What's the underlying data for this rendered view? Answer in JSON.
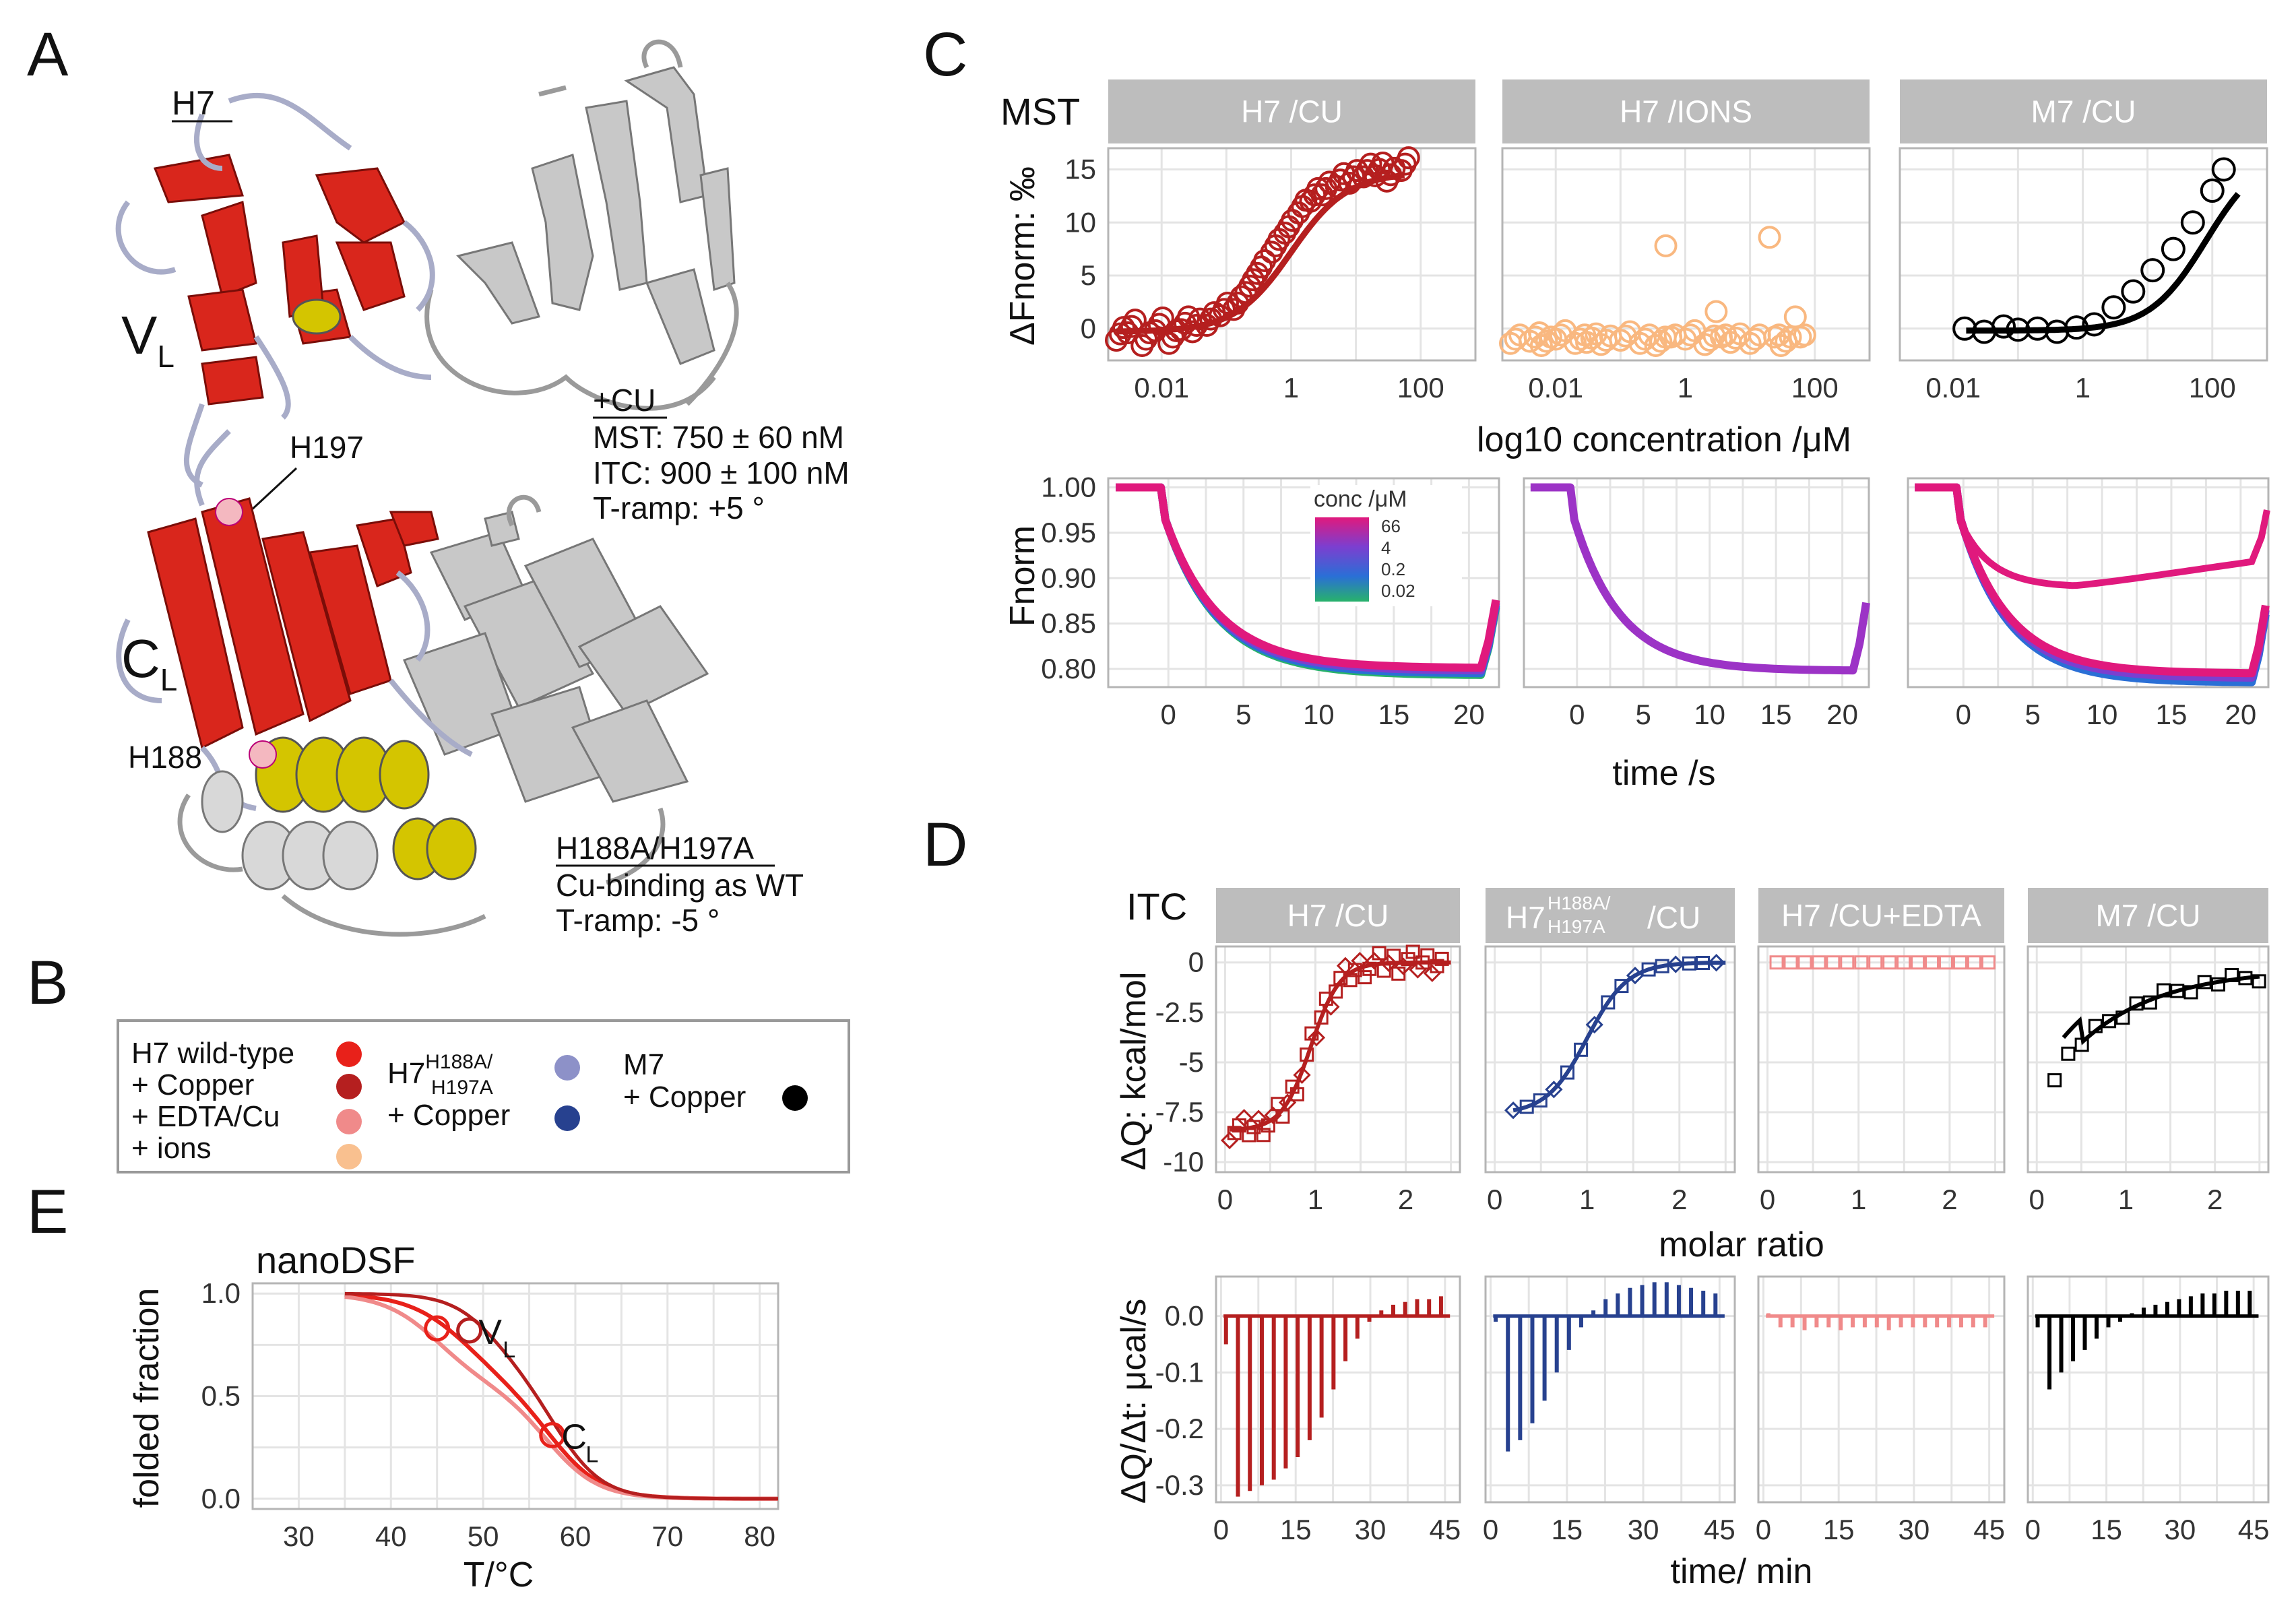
{
  "panel_labels": {
    "a": "A",
    "b": "B",
    "c": "C",
    "d": "D",
    "e": "E"
  },
  "panel_a": {
    "h7": "H7",
    "vl_main": "V",
    "vl_sub": "L",
    "cl_main": "C",
    "cl_sub": "L",
    "h197": "H197",
    "h188": "H188",
    "cu_head": "+CU",
    "cu_mst": "MST: 750 ±   60 nM",
    "cu_itc": "ITC:   900 ± 100  nM",
    "cu_tramp": "T-ramp: +5 °",
    "mut_head": "H188A/H197A",
    "mut_line1": "Cu-binding as WT",
    "mut_line2": "T-ramp: -5 °",
    "colors": {
      "domain": "#d9261c",
      "dark": "#a31510",
      "helix": "#f0e000",
      "loop": "#a8acc8",
      "grey": "#c8c8c8",
      "his": "#f4b8c0"
    }
  },
  "panel_b": {
    "wt_line1": "H7 wild-type",
    "wt_line2": "+ Copper",
    "wt_line3": "+ EDTA/Cu",
    "wt_line4": "+ ions",
    "mut_name": "H7",
    "mut_sup1": "H188A/",
    "mut_sub": "H197A",
    "mut_line2": "+ Copper",
    "m7_line1": "M7",
    "m7_line2": "+ Copper",
    "colors": {
      "wt": "#e8211a",
      "copper": "#b51f1f",
      "edta": "#f08a8a",
      "ions": "#f9c08f",
      "mut": "#8d91c8",
      "mut_cu": "#27418f",
      "m7": "#000000"
    }
  },
  "chart_data": [
    {
      "type": "scatter",
      "id": "mst_dose",
      "row_label": "MST",
      "ylabel": "ΔFnorm: ‰",
      "xlabel": "log10 concentration /μM",
      "xscale": "log",
      "facets": [
        "H7 /CU",
        "H7 /IONS",
        "M7 /CU"
      ],
      "yticks": [
        "0",
        "5",
        "10",
        "15"
      ],
      "xtick_labels": [
        "0.01",
        "1",
        "100"
      ],
      "ylim": [
        -3,
        17
      ],
      "series": [
        {
          "facet": 0,
          "color": "#b51f1f",
          "x": [
            0.002,
            0.003,
            0.005,
            0.008,
            0.013,
            0.02,
            0.03,
            0.05,
            0.08,
            0.13,
            0.2,
            0.3,
            0.5,
            0.8,
            1.3,
            2,
            3,
            5,
            8,
            13,
            20,
            30,
            50
          ],
          "y": [
            -0.5,
            0.2,
            -1,
            0.4,
            -0.8,
            0.5,
            0.3,
            0.9,
            1.8,
            2.4,
            4,
            5.8,
            7.8,
            9.6,
            11.5,
            12.6,
            13.2,
            14,
            14.3,
            14.9,
            15,
            14.5,
            15.5
          ],
          "fit_kd": 1,
          "fit_top": 15
        }
      ],
      "ions_x": [
        0.002,
        0.004,
        0.006,
        0.01,
        0.02,
        0.03,
        0.05,
        0.1,
        0.2,
        0.35,
        0.5,
        1,
        2,
        3,
        5,
        10,
        20,
        30,
        50
      ],
      "ions_y": [
        -1,
        -0.8,
        -1.2,
        -0.6,
        -1,
        -0.9,
        -1.1,
        -0.7,
        -1,
        -1.2,
        8.2,
        -0.6,
        -1.1,
        2,
        -0.9,
        -1,
        9,
        -1.2,
        1.5
      ],
      "m7_x": [
        0.015,
        0.03,
        0.06,
        0.1,
        0.2,
        0.4,
        0.8,
        1.5,
        3,
        6,
        12,
        25,
        50,
        100,
        150
      ],
      "m7_y": [
        0,
        -0.3,
        0.2,
        -0.1,
        0,
        -0.3,
        0.1,
        0.4,
        2,
        3.5,
        5.5,
        7.5,
        10,
        13,
        15
      ],
      "m7_kd": 80,
      "m7_top": 17
    },
    {
      "type": "line",
      "id": "mst_trace",
      "ylabel": "Fnorm",
      "xlabel": "time /s",
      "yticks": [
        "0.80",
        "0.85",
        "0.90",
        "0.95",
        "1.00"
      ],
      "xticks": [
        "0",
        "5",
        "10",
        "15",
        "20"
      ],
      "xlim": [
        -4,
        22
      ],
      "ylim": [
        0.78,
        1.01
      ],
      "legend_title": "conc /μM",
      "legend_labels": [
        "66",
        "4",
        "0.2",
        "0.02"
      ],
      "colors": [
        "#e0197d",
        "#7b3fd0",
        "#2a6fd6",
        "#28b26b",
        "#9c33c6"
      ]
    },
    {
      "type": "scatter",
      "id": "itc_iso",
      "row_label": "ITC",
      "ylabel": "ΔQ: kcal/mol",
      "xlabel": "molar ratio",
      "facets": [
        "H7 /CU",
        "/CU",
        "H7 /CU+EDTA",
        "M7 /CU"
      ],
      "facet_h7": "H7",
      "facet_sup": "H188A/",
      "facet_sub": "H197A",
      "yticks": [
        "0",
        "-2.5",
        "-5",
        "-7.5",
        "-10"
      ],
      "xticks": [
        "0",
        "1",
        "2"
      ],
      "xlim": [
        -0.1,
        2.6
      ],
      "ylim": [
        -10.5,
        0.8
      ],
      "colors": [
        "#b51f1f",
        "#27418f",
        "#f08a8a",
        "#000000"
      ]
    },
    {
      "type": "bar",
      "id": "itc_raw",
      "ylabel": "ΔQ/Δt: μcal/s",
      "xlabel": "time/ min",
      "yticks": [
        "0.0",
        "-0.1",
        "-0.2",
        "-0.3"
      ],
      "xticks": [
        "0",
        "15",
        "30",
        "45"
      ],
      "xlim": [
        -1,
        48
      ],
      "ylim": [
        -0.33,
        0.07
      ],
      "colors": [
        "#b51f1f",
        "#27418f",
        "#f08a8a",
        "#000000"
      ],
      "depths": [
        [
          -0.05,
          -0.32,
          -0.31,
          -0.3,
          -0.29,
          -0.27,
          -0.25,
          -0.22,
          -0.18,
          -0.13,
          -0.08,
          -0.04,
          -0.01,
          0.01,
          0.02,
          0.025,
          0.03,
          0.03,
          0.035
        ],
        [
          -0.01,
          -0.24,
          -0.22,
          -0.19,
          -0.15,
          -0.1,
          -0.06,
          -0.02,
          0.01,
          0.03,
          0.04,
          0.05,
          0.055,
          0.06,
          0.06,
          0.055,
          0.05,
          0.045,
          0.04
        ],
        [
          0.005,
          -0.02,
          -0.02,
          -0.025,
          -0.02,
          -0.02,
          -0.025,
          -0.02,
          -0.02,
          -0.02,
          -0.025,
          -0.02,
          -0.02,
          -0.02,
          -0.02,
          -0.02,
          -0.02,
          -0.02,
          -0.02
        ],
        [
          -0.02,
          -0.13,
          -0.1,
          -0.08,
          -0.06,
          -0.04,
          -0.02,
          -0.01,
          0.005,
          0.015,
          0.02,
          0.025,
          0.03,
          0.035,
          0.04,
          0.04,
          0.045,
          0.045,
          0.045
        ]
      ]
    },
    {
      "type": "line",
      "id": "nanodsf",
      "title": "nanoDSF",
      "ylabel": "folded fraction",
      "xlabel": "T/°C",
      "yticks": [
        "0.0",
        "0.5",
        "1.0"
      ],
      "xticks": [
        "30",
        "40",
        "50",
        "60",
        "70",
        "80"
      ],
      "xlim": [
        25,
        82
      ],
      "ylim": [
        -0.05,
        1.05
      ],
      "vl_main": "V",
      "vl_sub": "L",
      "cl_main": "C",
      "cl_sub": "L",
      "markers": [
        {
          "x": 45,
          "y": 0.83
        },
        {
          "x": 48.5,
          "y": 0.82
        },
        {
          "x": 57.5,
          "y": 0.31
        }
      ],
      "color": "#e8211a"
    }
  ]
}
